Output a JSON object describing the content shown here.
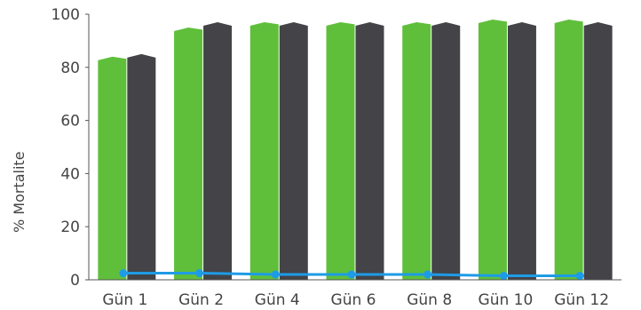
{
  "chart_data": {
    "type": "bar",
    "ylabel": "% Mortalite",
    "ylim": [
      0,
      100
    ],
    "yticks": [
      0,
      20,
      40,
      60,
      80,
      100
    ],
    "categories": [
      "Gün 1",
      "Gün 2",
      "Gün 4",
      "Gün 6",
      "Gün 8",
      "Gün 10",
      "Gün 12"
    ],
    "series": [
      {
        "values": [
          84,
          95,
          97,
          97,
          97,
          98,
          98
        ],
        "color": "#5fbf3b",
        "kind": "bar"
      },
      {
        "values": [
          85,
          97,
          97,
          97,
          97,
          97,
          97
        ],
        "color": "#434348",
        "kind": "bar"
      },
      {
        "values": [
          2.5,
          2.5,
          2,
          2,
          2,
          1.5,
          1.5
        ],
        "color": "#1e9be6",
        "kind": "line"
      }
    ],
    "grid": false,
    "legend": "none"
  }
}
